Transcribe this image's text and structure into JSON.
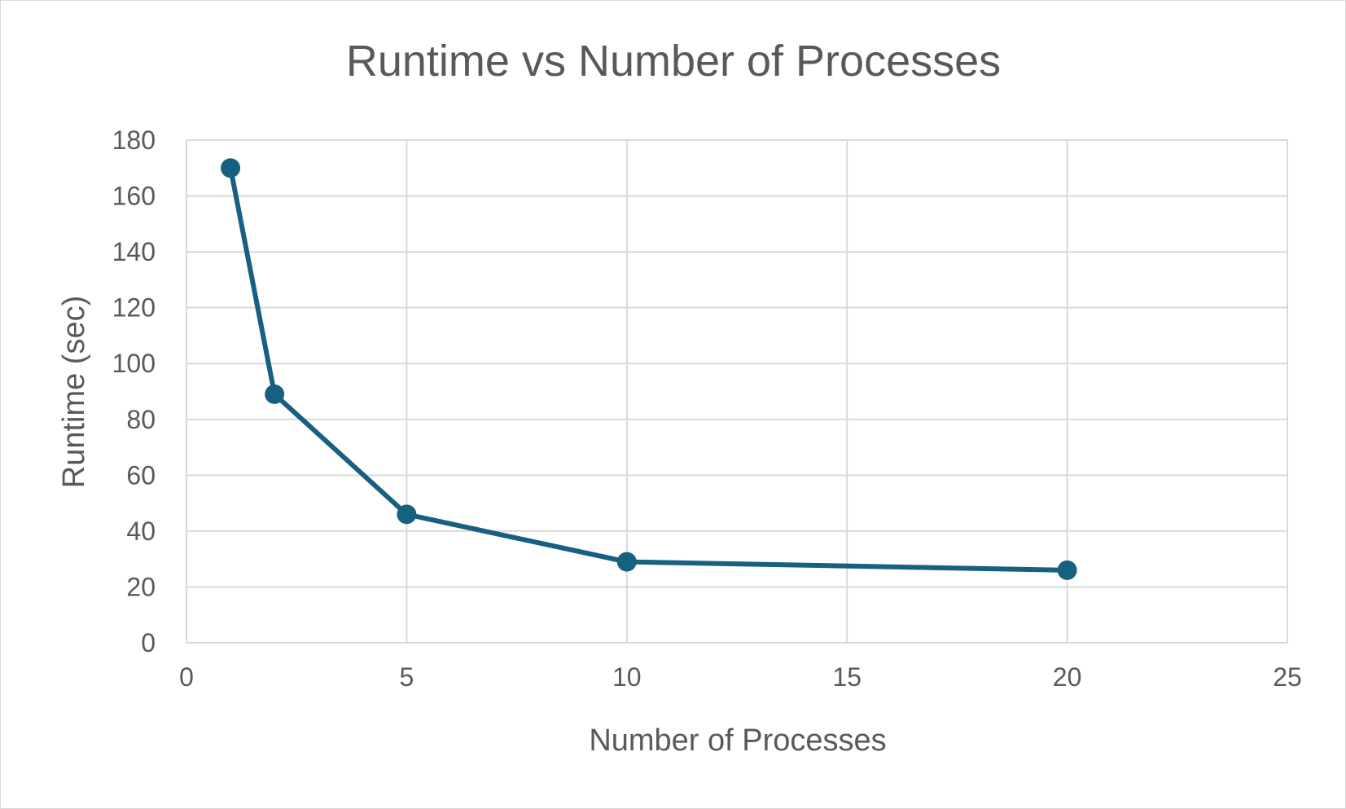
{
  "chart_data": {
    "type": "scatter",
    "title": "Runtime vs Number of Processes",
    "xlabel": "Number of Processes",
    "ylabel": "Runtime (sec)",
    "xlim": [
      0,
      25
    ],
    "ylim": [
      0,
      180
    ],
    "x_ticks": [
      0,
      5,
      10,
      15,
      20,
      25
    ],
    "y_ticks": [
      0,
      20,
      40,
      60,
      80,
      100,
      120,
      140,
      160,
      180
    ],
    "grid": true,
    "legend": "none",
    "series": [
      {
        "x": [
          1,
          2,
          5,
          10,
          20
        ],
        "y": [
          170,
          89,
          46,
          29,
          26
        ],
        "color": "#17607f",
        "marker": "circle",
        "line": true
      }
    ]
  }
}
